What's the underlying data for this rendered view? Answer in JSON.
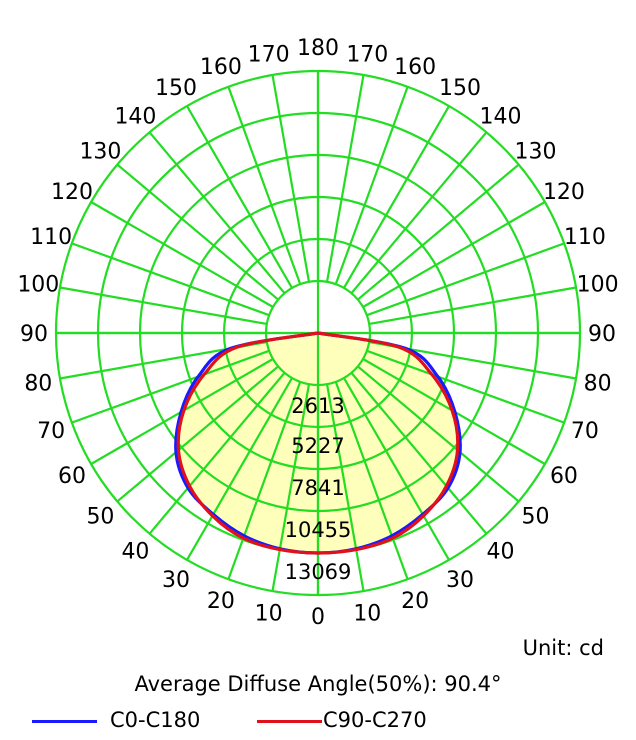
{
  "chart_data": {
    "type": "polar",
    "unit_label": "Unit: cd",
    "diffuse_angle_label": "Average Diffuse Angle(50%): 90.4°",
    "angle_labels_left": [
      "0",
      "10",
      "20",
      "30",
      "40",
      "50",
      "60",
      "70",
      "80",
      "90",
      "100",
      "110",
      "120",
      "130",
      "140",
      "150",
      "160",
      "170",
      "180"
    ],
    "angle_labels_right": [
      "10",
      "20",
      "30",
      "40",
      "50",
      "60",
      "70",
      "80",
      "90",
      "100",
      "110",
      "120",
      "130",
      "140",
      "150",
      "160",
      "170"
    ],
    "ring_values": [
      "2613",
      "5227",
      "7841",
      "10455",
      "13069"
    ],
    "r_max": 13069,
    "grid_color": "#22dd22",
    "fill_color": "#ffffb0",
    "series": [
      {
        "name": "C0-C180",
        "color": "#1a1aff",
        "angles_deg": [
          0,
          10,
          20,
          30,
          40,
          50,
          60,
          70,
          80,
          90
        ],
        "values": [
          10455,
          10400,
          10200,
          9800,
          9350,
          8300,
          6600,
          4700,
          2300,
          0
        ]
      },
      {
        "name": "C90-C270",
        "color": "#e0101c",
        "angles_deg": [
          0,
          10,
          20,
          30,
          40,
          50,
          60,
          70,
          80,
          90
        ],
        "values": [
          10455,
          10450,
          10350,
          9900,
          9200,
          8100,
          6400,
          4300,
          1900,
          0
        ]
      }
    ]
  }
}
